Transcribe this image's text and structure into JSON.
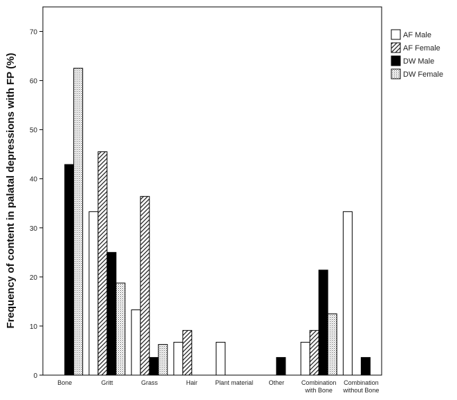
{
  "chart_data": {
    "type": "bar",
    "title": "",
    "xlabel": "",
    "ylabel": "Frequency of content in palatal depressions with FP (%)",
    "ylim": [
      0,
      75
    ],
    "yticks": [
      "0",
      "10",
      "20",
      "30",
      "40",
      "50",
      "60",
      "70"
    ],
    "grid": false,
    "legend_position": "right",
    "categories": [
      [
        "Bone"
      ],
      [
        "Gritt"
      ],
      [
        "Grass"
      ],
      [
        "Hair"
      ],
      [
        "Plant material"
      ],
      [
        "Other"
      ],
      [
        "Combination",
        "with Bone"
      ],
      [
        "Combination",
        "without Bone"
      ]
    ],
    "series": [
      {
        "name": "AF Male",
        "pattern": "white",
        "values": [
          0,
          33.3,
          13.3,
          6.7,
          6.7,
          0,
          6.7,
          33.3
        ]
      },
      {
        "name": "AF Female",
        "pattern": "hatch",
        "values": [
          0,
          45.5,
          36.4,
          9.1,
          0,
          0,
          9.1,
          0
        ]
      },
      {
        "name": "DW Male",
        "pattern": "black",
        "values": [
          42.9,
          25.0,
          3.6,
          0,
          0,
          3.6,
          21.4,
          3.6
        ]
      },
      {
        "name": "DW Female",
        "pattern": "dots",
        "values": [
          62.5,
          18.75,
          6.25,
          0,
          0,
          0,
          12.5,
          0
        ]
      }
    ]
  }
}
